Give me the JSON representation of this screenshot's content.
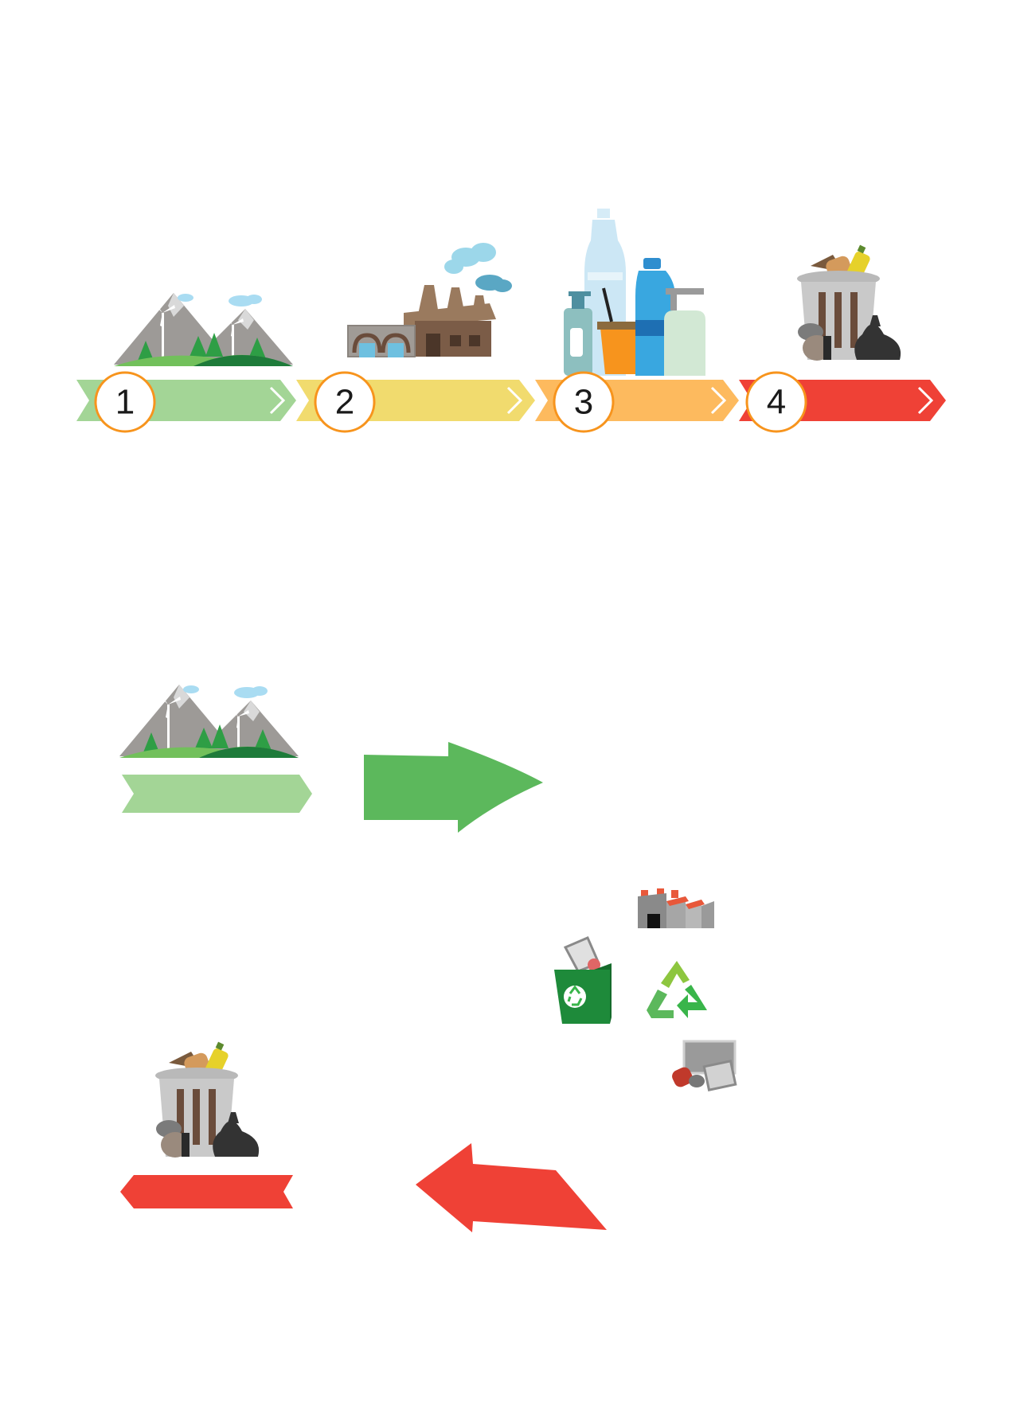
{
  "timeline": {
    "steps": [
      {
        "number": "1",
        "icon": "mountain-landscape-icon",
        "color": "#A3D596"
      },
      {
        "number": "2",
        "icon": "factory-icon",
        "color": "#F1DB6E"
      },
      {
        "number": "3",
        "icon": "plastic-products-icon",
        "color": "#FDBA5E"
      },
      {
        "number": "4",
        "icon": "trash-can-icon",
        "color": "#EF4136"
      }
    ],
    "circle_border_color": "#F7941D"
  },
  "cycle": {
    "forward_arrow_color": "#5CB85C",
    "back_arrow_color": "#EF4136",
    "recycle_color": "#39B54A",
    "icons": [
      "mountain-landscape-icon",
      "factory-icon",
      "recycling-bin-icon",
      "recycle-symbol-icon",
      "scrap-metal-icon",
      "trash-can-icon"
    ]
  }
}
